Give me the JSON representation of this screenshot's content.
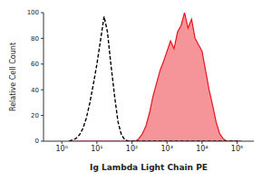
{
  "chart_data": {
    "type": "line",
    "xlabel": "Ig Lambda Light Chain PE",
    "ylabel": "Relative Cell Count",
    "log": "x",
    "grid": false,
    "xlim": [
      0.3,
      300000
    ],
    "xticks": [
      {
        "value": 1,
        "label": "10⁰"
      },
      {
        "value": 10,
        "label": "10¹"
      },
      {
        "value": 100,
        "label": "10²"
      },
      {
        "value": 1000,
        "label": "10³"
      },
      {
        "value": 10000,
        "label": "10⁴"
      },
      {
        "value": 100000,
        "label": "10⁵"
      }
    ],
    "ylim": [
      0,
      100
    ],
    "yticks": [
      0,
      20,
      40,
      60,
      80,
      100
    ],
    "x": [
      1.6,
      2,
      2.5,
      3.2,
      4,
      5,
      6.3,
      8,
      10,
      12.6,
      16,
      20,
      25,
      32,
      40,
      50,
      63,
      80,
      100,
      126,
      158,
      200,
      251,
      316,
      398,
      501,
      631,
      794,
      1000,
      1259,
      1585,
      1995,
      2512,
      3162,
      3981,
      5012,
      6310,
      7943,
      10000,
      12589,
      15849,
      19953,
      25119,
      31623,
      39811,
      50119,
      63096,
      79433,
      100000,
      125893
    ],
    "series": [
      {
        "type": "line",
        "color": "#000000",
        "line_style": "dashed",
        "values": [
          0,
          1,
          2,
          5,
          10,
          18,
          30,
          45,
          60,
          78,
          97,
          85,
          60,
          35,
          15,
          5,
          1,
          0,
          0,
          0,
          0,
          0,
          0,
          0,
          0,
          0,
          0,
          0,
          0,
          0,
          0,
          0,
          0,
          0,
          0,
          0,
          0,
          0,
          0,
          0,
          0,
          0,
          0,
          0,
          0,
          0,
          0,
          0,
          0,
          0
        ]
      },
      {
        "type": "area",
        "color": "#e8141e",
        "line_style": "solid",
        "values": [
          0,
          0,
          0,
          0,
          0,
          0,
          0,
          0,
          0,
          0,
          0,
          0,
          0,
          0,
          0,
          0,
          0,
          0,
          0,
          0,
          2,
          6,
          12,
          22,
          35,
          45,
          55,
          62,
          70,
          78,
          72,
          85,
          90,
          100,
          88,
          95,
          80,
          75,
          70,
          55,
          40,
          28,
          15,
          6,
          2,
          0,
          0,
          0,
          0,
          0
        ]
      }
    ]
  }
}
